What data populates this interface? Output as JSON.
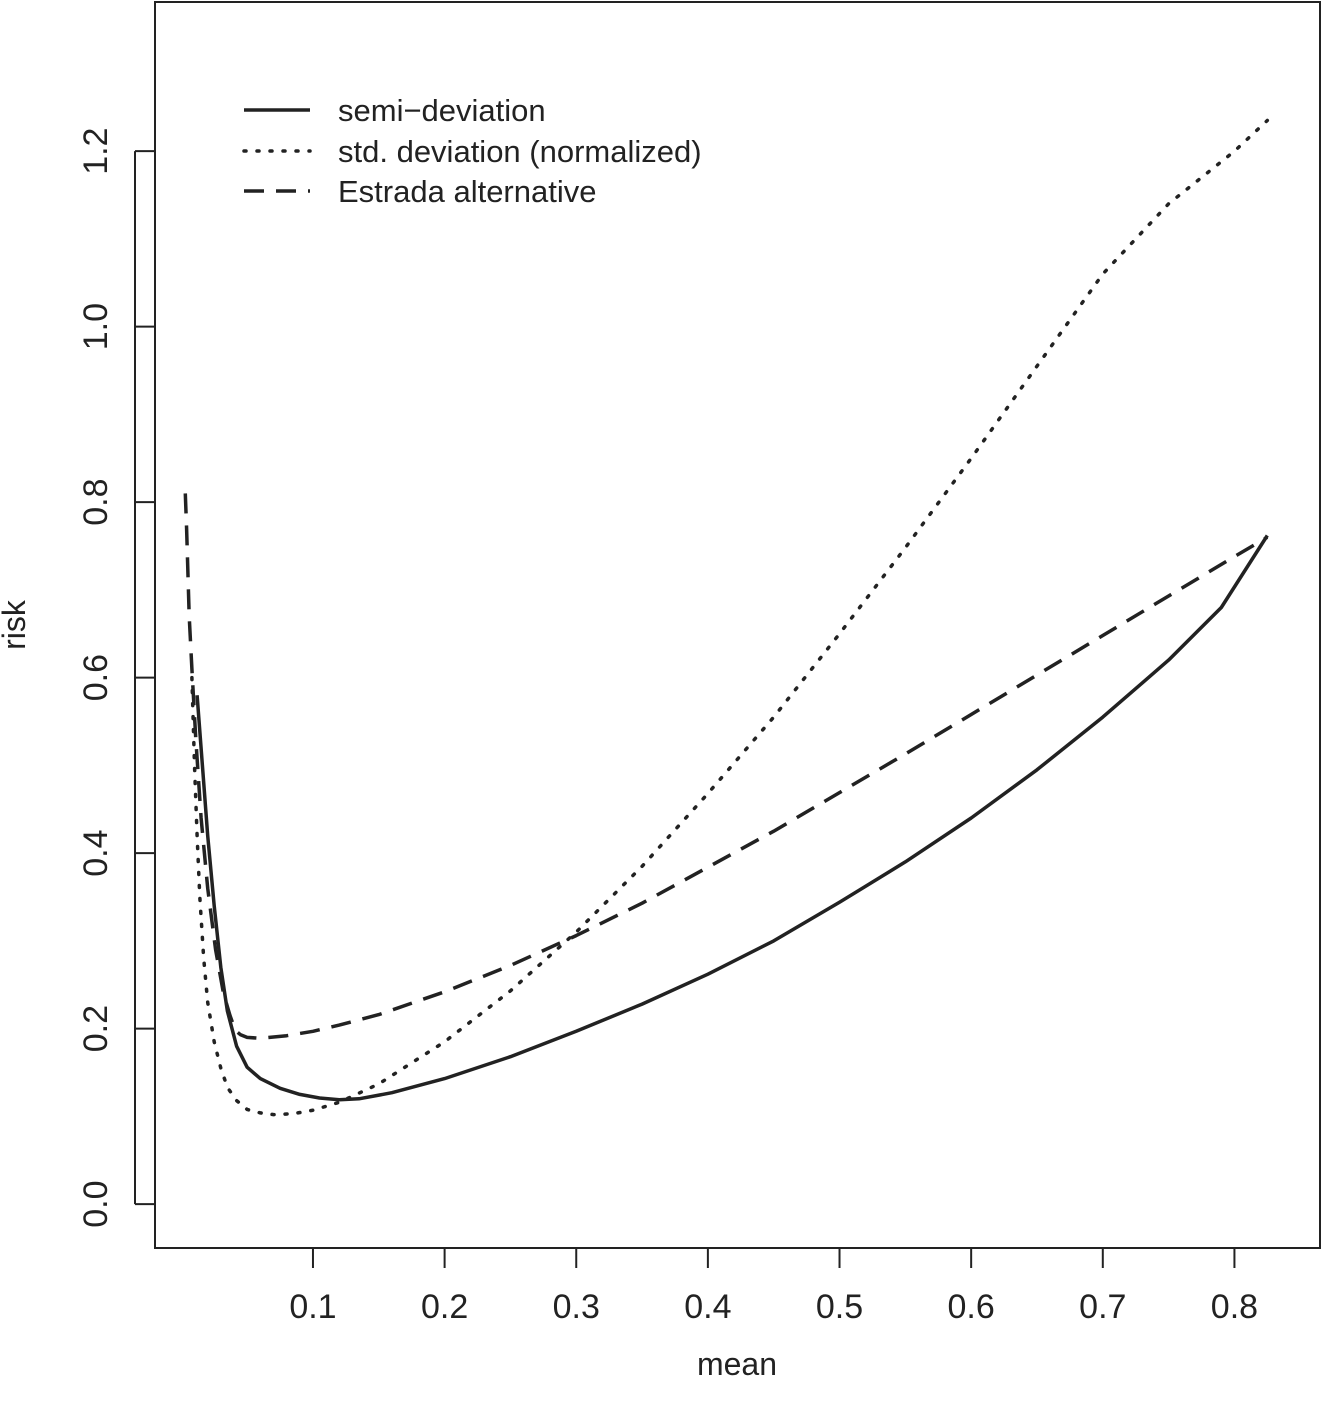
{
  "chart_data": {
    "type": "line",
    "title": "",
    "xlabel": "mean",
    "ylabel": "risk",
    "xlim": [
      -0.02,
      0.865
    ],
    "ylim": [
      -0.05,
      1.37
    ],
    "x_ticks": [
      0.1,
      0.2,
      0.3,
      0.4,
      0.5,
      0.6,
      0.7,
      0.8
    ],
    "x_tick_labels": [
      "0.1",
      "0.2",
      "0.3",
      "0.4",
      "0.5",
      "0.6",
      "0.7",
      "0.8"
    ],
    "y_ticks": [
      0.0,
      0.2,
      0.4,
      0.6,
      0.8,
      1.0,
      1.2
    ],
    "y_tick_labels": [
      "0.0",
      "0.2",
      "0.4",
      "0.6",
      "0.8",
      "1.0",
      "1.2"
    ],
    "grid": false,
    "legend_position": "top-left",
    "series": [
      {
        "name": "semi−deviation",
        "style": "solid",
        "color": "#222222",
        "points": [
          [
            0.012,
            0.58
          ],
          [
            0.016,
            0.5
          ],
          [
            0.02,
            0.42
          ],
          [
            0.025,
            0.34
          ],
          [
            0.03,
            0.27
          ],
          [
            0.035,
            0.22
          ],
          [
            0.042,
            0.18
          ],
          [
            0.05,
            0.156
          ],
          [
            0.06,
            0.143
          ],
          [
            0.075,
            0.132
          ],
          [
            0.09,
            0.125
          ],
          [
            0.105,
            0.121
          ],
          [
            0.12,
            0.119
          ],
          [
            0.135,
            0.12
          ],
          [
            0.16,
            0.127
          ],
          [
            0.2,
            0.143
          ],
          [
            0.25,
            0.168
          ],
          [
            0.3,
            0.197
          ],
          [
            0.35,
            0.228
          ],
          [
            0.4,
            0.262
          ],
          [
            0.45,
            0.3
          ],
          [
            0.5,
            0.344
          ],
          [
            0.55,
            0.39
          ],
          [
            0.6,
            0.44
          ],
          [
            0.65,
            0.495
          ],
          [
            0.7,
            0.555
          ],
          [
            0.75,
            0.62
          ],
          [
            0.79,
            0.68
          ],
          [
            0.825,
            0.762
          ]
        ]
      },
      {
        "name": "std. deviation (normalized)",
        "style": "dotted",
        "color": "#222222",
        "points": [
          [
            0.008,
            0.6
          ],
          [
            0.01,
            0.5
          ],
          [
            0.012,
            0.42
          ],
          [
            0.014,
            0.35
          ],
          [
            0.017,
            0.28
          ],
          [
            0.02,
            0.23
          ],
          [
            0.025,
            0.185
          ],
          [
            0.03,
            0.155
          ],
          [
            0.035,
            0.133
          ],
          [
            0.042,
            0.118
          ],
          [
            0.05,
            0.108
          ],
          [
            0.06,
            0.104
          ],
          [
            0.07,
            0.102
          ],
          [
            0.085,
            0.103
          ],
          [
            0.1,
            0.107
          ],
          [
            0.12,
            0.116
          ],
          [
            0.15,
            0.137
          ],
          [
            0.2,
            0.185
          ],
          [
            0.25,
            0.243
          ],
          [
            0.3,
            0.31
          ],
          [
            0.35,
            0.385
          ],
          [
            0.4,
            0.468
          ],
          [
            0.45,
            0.555
          ],
          [
            0.5,
            0.65
          ],
          [
            0.55,
            0.748
          ],
          [
            0.6,
            0.85
          ],
          [
            0.65,
            0.955
          ],
          [
            0.7,
            1.06
          ],
          [
            0.75,
            1.14
          ],
          [
            0.8,
            1.2
          ],
          [
            0.825,
            1.235
          ]
        ]
      },
      {
        "name": "Estrada alternative",
        "style": "dashed",
        "color": "#222222",
        "points": [
          [
            0.003,
            0.81
          ],
          [
            0.004,
            0.77
          ],
          [
            0.005,
            0.72
          ],
          [
            0.006,
            0.67
          ],
          [
            0.008,
            0.61
          ],
          [
            0.011,
            0.53
          ],
          [
            0.015,
            0.44
          ],
          [
            0.02,
            0.36
          ],
          [
            0.026,
            0.29
          ],
          [
            0.032,
            0.24
          ],
          [
            0.037,
            0.215
          ],
          [
            0.041,
            0.198
          ],
          [
            0.045,
            0.193
          ],
          [
            0.05,
            0.19
          ],
          [
            0.06,
            0.189
          ],
          [
            0.08,
            0.192
          ],
          [
            0.1,
            0.197
          ],
          [
            0.12,
            0.204
          ],
          [
            0.15,
            0.216
          ],
          [
            0.2,
            0.242
          ],
          [
            0.25,
            0.272
          ],
          [
            0.3,
            0.306
          ],
          [
            0.35,
            0.343
          ],
          [
            0.4,
            0.384
          ],
          [
            0.45,
            0.425
          ],
          [
            0.5,
            0.469
          ],
          [
            0.55,
            0.513
          ],
          [
            0.6,
            0.558
          ],
          [
            0.65,
            0.603
          ],
          [
            0.7,
            0.648
          ],
          [
            0.75,
            0.693
          ],
          [
            0.8,
            0.738
          ],
          [
            0.825,
            0.76
          ]
        ]
      }
    ]
  }
}
